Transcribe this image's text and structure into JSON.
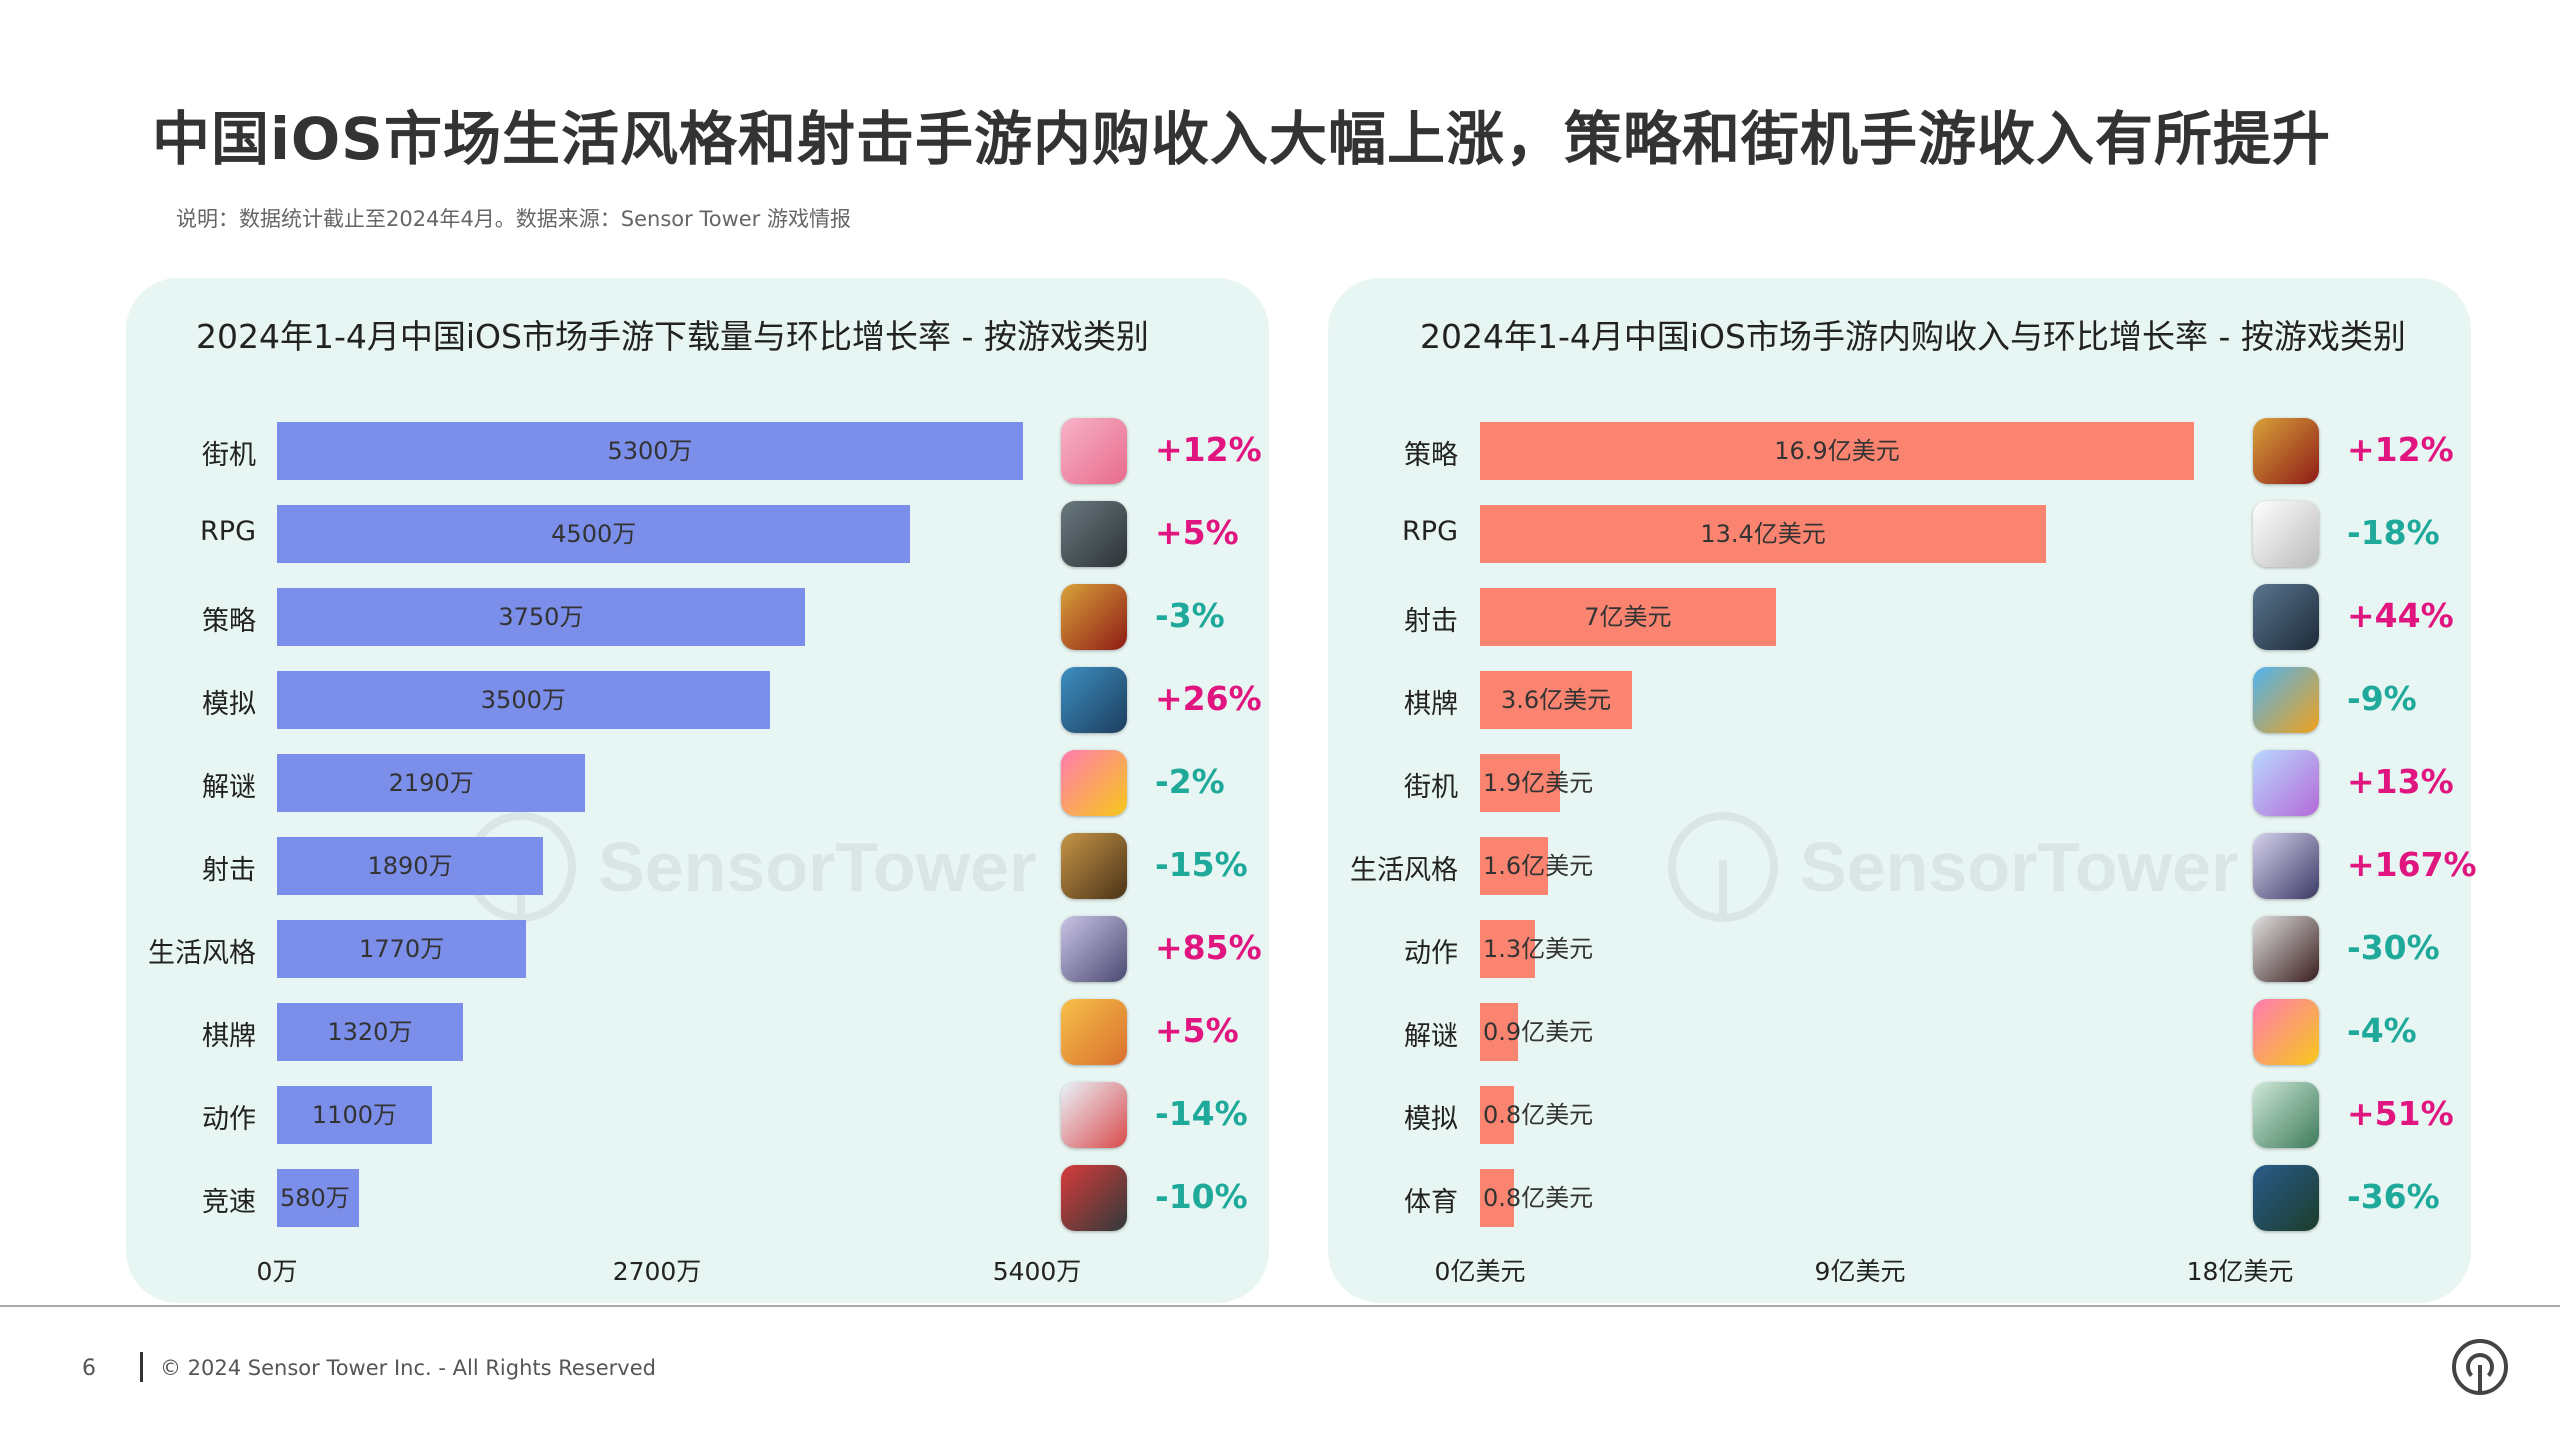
{
  "header": {
    "title": "中国iOS市场生活风格和射击手游内购收入大幅上涨，策略和街机手游收入有所提升",
    "subtitle": "说明：数据统计截止至2024年4月。数据来源：Sensor Tower 游戏情报"
  },
  "watermark": "SensorTower",
  "colors": {
    "up": "#e0157f",
    "down": "#1fa99a",
    "panel_bg": "#e7f5f3"
  },
  "chart_data": [
    {
      "type": "bar",
      "orientation": "horizontal",
      "title": "2024年1-4月中国iOS市场手游下载量与环比增长率 - 按游戏类别",
      "unit": "万",
      "bar_color": "#7b8ee9",
      "xlim": [
        0,
        5400
      ],
      "ticks": [
        {
          "value": 0,
          "label": "0万"
        },
        {
          "value": 2700,
          "label": "2700万"
        },
        {
          "value": 5400,
          "label": "5400万"
        }
      ],
      "grid": false,
      "categories": [
        "街机",
        "RPG",
        "策略",
        "模拟",
        "解谜",
        "射击",
        "生活风格",
        "棋牌",
        "动作",
        "竞速"
      ],
      "values": [
        5300,
        4500,
        3750,
        3500,
        2190,
        1890,
        1770,
        1320,
        1100,
        580
      ],
      "value_labels": [
        "5300万",
        "4500万",
        "3750万",
        "3500万",
        "2190万",
        "1890万",
        "1770万",
        "1320万",
        "1100万",
        "580万"
      ],
      "growth": [
        "+12%",
        "+5%",
        "-3%",
        "+26%",
        "-2%",
        "-15%",
        "+85%",
        "+5%",
        "-14%",
        "-10%"
      ],
      "icons": [
        {
          "name": "game-icon",
          "colors": [
            "#f7b3c8",
            "#e86a8c"
          ]
        },
        {
          "name": "game-icon",
          "colors": [
            "#6b7a80",
            "#2b3236"
          ]
        },
        {
          "name": "game-icon",
          "colors": [
            "#d9a23a",
            "#8e1b16"
          ]
        },
        {
          "name": "game-icon",
          "colors": [
            "#3d8fc2",
            "#1c3d5c"
          ]
        },
        {
          "name": "game-icon",
          "colors": [
            "#ff7bb0",
            "#f7c81a"
          ]
        },
        {
          "name": "game-icon",
          "colors": [
            "#c69546",
            "#4a3218"
          ]
        },
        {
          "name": "game-icon",
          "colors": [
            "#c9c4e6",
            "#4b4a72"
          ]
        },
        {
          "name": "game-icon",
          "colors": [
            "#f7c04a",
            "#d9702e"
          ]
        },
        {
          "name": "game-icon",
          "colors": [
            "#e9f3fb",
            "#d94a4a"
          ]
        },
        {
          "name": "game-icon",
          "colors": [
            "#d83b3b",
            "#2f3a3a"
          ]
        }
      ]
    },
    {
      "type": "bar",
      "orientation": "horizontal",
      "title": "2024年1-4月中国iOS市场手游内购收入与环比增长率 - 按游戏类别",
      "unit": "亿美元",
      "bar_color": "#fb8471",
      "xlim": [
        0,
        18
      ],
      "ticks": [
        {
          "value": 0,
          "label": "0亿美元"
        },
        {
          "value": 9,
          "label": "9亿美元"
        },
        {
          "value": 18,
          "label": "18亿美元"
        }
      ],
      "grid": false,
      "categories": [
        "策略",
        "RPG",
        "射击",
        "棋牌",
        "街机",
        "生活风格",
        "动作",
        "解谜",
        "模拟",
        "体育"
      ],
      "values": [
        16.9,
        13.4,
        7,
        3.6,
        1.9,
        1.6,
        1.3,
        0.9,
        0.8,
        0.8
      ],
      "value_labels": [
        "16.9亿美元",
        "13.4亿美元",
        "7亿美元",
        "3.6亿美元",
        "1.9亿美元",
        "1.6亿美元",
        "1.3亿美元",
        "0.9亿美元",
        "0.8亿美元",
        "0.8亿美元"
      ],
      "growth": [
        "+12%",
        "-18%",
        "+44%",
        "-9%",
        "+13%",
        "+167%",
        "-30%",
        "-4%",
        "+51%",
        "-36%"
      ],
      "icons": [
        {
          "name": "game-icon",
          "colors": [
            "#d9a23a",
            "#8e1b16"
          ]
        },
        {
          "name": "game-icon",
          "colors": [
            "#ffffff",
            "#bbbbbb"
          ]
        },
        {
          "name": "game-icon",
          "colors": [
            "#5a7690",
            "#1d2a38"
          ]
        },
        {
          "name": "game-icon",
          "colors": [
            "#4fb3f0",
            "#f0a11c"
          ]
        },
        {
          "name": "game-icon",
          "colors": [
            "#b9d8ff",
            "#b46ad8"
          ]
        },
        {
          "name": "game-icon",
          "colors": [
            "#d6d2ee",
            "#3b3a66"
          ]
        },
        {
          "name": "game-icon",
          "colors": [
            "#e0e0e0",
            "#3a1d1d"
          ]
        },
        {
          "name": "game-icon",
          "colors": [
            "#ff7bb0",
            "#f7c81a"
          ]
        },
        {
          "name": "game-icon",
          "colors": [
            "#cfe9d8",
            "#3c7a5a"
          ]
        },
        {
          "name": "game-icon",
          "colors": [
            "#2a5b8c",
            "#1b3d2a"
          ]
        }
      ]
    }
  ],
  "footer": {
    "page_number": "6",
    "copyright": "© 2024 Sensor Tower Inc. - All Rights Reserved"
  }
}
